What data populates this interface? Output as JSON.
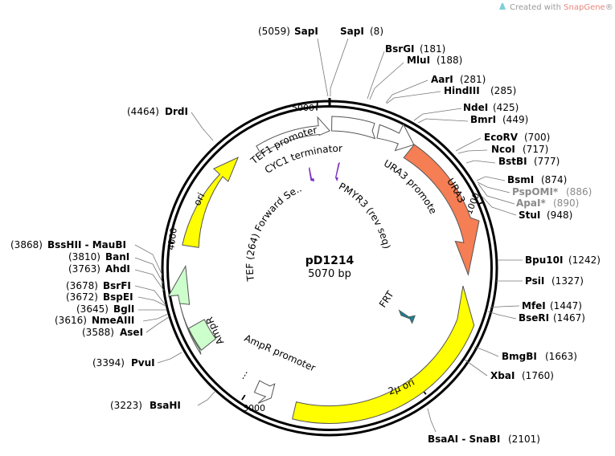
{
  "credit": {
    "prefix": "Created with ",
    "brand": "SnapGene",
    "suffix": "®"
  },
  "plasmid": {
    "name": "pD1214",
    "size_label": "5070 bp"
  },
  "ticks": [
    "5000",
    "1000",
    "2000",
    "3000",
    "4000"
  ],
  "features": [
    {
      "label": "URA3",
      "color": "#f57e54"
    },
    {
      "label": "2μ ori",
      "color": "#ffff00"
    },
    {
      "label": "AmpR",
      "color": "#ccffcc"
    },
    {
      "label": "ori",
      "color": "#ffff00"
    },
    {
      "label": "TEF1 promoter",
      "color": "#ffffff"
    },
    {
      "label": "CYC1 terminator",
      "color": "#ffffff"
    },
    {
      "label": "URA3 promoter",
      "color": "#ffffff"
    },
    {
      "label": "AmpR promoter",
      "color": "#ffffff"
    },
    {
      "label": "FRT",
      "color": "#1e7f8e"
    },
    {
      "label": "TEF (264) Forward Se...",
      "color": "#7a2fbf"
    },
    {
      "label": "PMYR3 (rev seq)",
      "color": "#7a2fbf"
    }
  ],
  "sites": [
    {
      "name": "SapI",
      "pos": "(8)"
    },
    {
      "name": "SapI",
      "pos": "(5059)"
    },
    {
      "name": "BsrGI",
      "pos": "(181)"
    },
    {
      "name": "MluI",
      "pos": "(188)"
    },
    {
      "name": "AarI",
      "pos": "(281)"
    },
    {
      "name": "HindIII",
      "pos": "(285)"
    },
    {
      "name": "NdeI",
      "pos": "(425)"
    },
    {
      "name": "BmrI",
      "pos": "(449)"
    },
    {
      "name": "EcoRV",
      "pos": "(700)"
    },
    {
      "name": "NcoI",
      "pos": "(717)"
    },
    {
      "name": "BstBI",
      "pos": "(777)"
    },
    {
      "name": "BsmI",
      "pos": "(874)"
    },
    {
      "name": "PspOMI*",
      "pos": "(886)"
    },
    {
      "name": "ApaI*",
      "pos": "(890)"
    },
    {
      "name": "StuI",
      "pos": "(948)"
    },
    {
      "name": "Bpu10I",
      "pos": "(1242)"
    },
    {
      "name": "PsiI",
      "pos": "(1327)"
    },
    {
      "name": "MfeI",
      "pos": "(1447)"
    },
    {
      "name": "BseRI",
      "pos": "(1467)"
    },
    {
      "name": "BmgBI",
      "pos": "(1663)"
    },
    {
      "name": "XbaI",
      "pos": "(1760)"
    },
    {
      "name": "BsaAI - SnaBI",
      "pos": "(2101)"
    },
    {
      "name": "BsaHI",
      "pos": "(3223)"
    },
    {
      "name": "PvuI",
      "pos": "(3394)"
    },
    {
      "name": "AseI",
      "pos": "(3588)"
    },
    {
      "name": "NmeAIII",
      "pos": "(3616)"
    },
    {
      "name": "BglI",
      "pos": "(3645)"
    },
    {
      "name": "BspEI",
      "pos": "(3672)"
    },
    {
      "name": "BsrFI",
      "pos": "(3678)"
    },
    {
      "name": "AhdI",
      "pos": "(3763)"
    },
    {
      "name": "BanI",
      "pos": "(3810)"
    },
    {
      "name": "BssHII - MauBI",
      "pos": "(3868)"
    },
    {
      "name": "DrdI",
      "pos": "(4464)"
    }
  ]
}
